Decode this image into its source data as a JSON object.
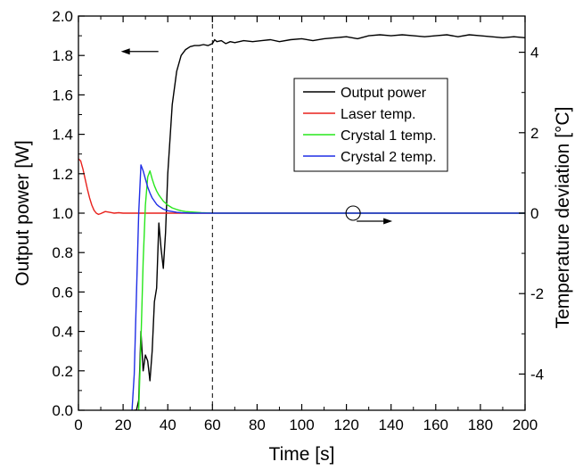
{
  "chart_data": {
    "type": "line",
    "title": "",
    "xlabel": "Time [s]",
    "ylabel_left": "Output power [W]",
    "ylabel_right": "Temperature deviation [°C]",
    "xlim": [
      0,
      200
    ],
    "ylim_left": [
      0,
      2.0
    ],
    "ylim_right": [
      -4.9,
      4.9
    ],
    "x_ticks": [
      0,
      20,
      40,
      60,
      80,
      100,
      120,
      140,
      160,
      180,
      200
    ],
    "x_tick_labels": [
      "0",
      "20",
      "40",
      "60",
      "80",
      "100",
      "120",
      "140",
      "160",
      "180",
      "200"
    ],
    "y_ticks_left": [
      0.0,
      0.2,
      0.4,
      0.6,
      0.8,
      1.0,
      1.2,
      1.4,
      1.6,
      1.8,
      2.0
    ],
    "y_tick_labels_left": [
      "0.0",
      "0.2",
      "0.4",
      "0.6",
      "0.8",
      "1.0",
      "1.2",
      "1.4",
      "1.6",
      "1.8",
      "2.0"
    ],
    "y_ticks_right": [
      -4,
      -2,
      0,
      2,
      4
    ],
    "y_tick_labels_right": [
      "-4",
      "-2",
      "0",
      "2",
      "4"
    ],
    "grid": false,
    "legend_position": "upper-right-center",
    "vertical_reference_line": {
      "x": 60,
      "style": "dashed"
    },
    "annotations": [
      {
        "type": "arrow",
        "direction": "left",
        "meaning": "Output power uses left axis",
        "x": 35,
        "y_left": 1.82
      },
      {
        "type": "circle-arrow",
        "direction": "right",
        "meaning": "Temperature curves use right axis",
        "x": 123,
        "y_left": 1.0
      }
    ],
    "series": [
      {
        "name": "Output power",
        "axis": "left",
        "color": "#000000",
        "x": [
          25,
          26,
          27,
          28,
          29,
          30,
          31,
          32,
          33,
          34,
          35,
          36,
          37,
          38,
          39,
          40,
          42,
          44,
          46,
          48,
          50,
          52,
          54,
          56,
          58,
          60,
          61,
          62,
          64,
          66,
          68,
          70,
          74,
          78,
          82,
          86,
          90,
          95,
          100,
          105,
          110,
          115,
          120,
          125,
          130,
          135,
          140,
          145,
          150,
          155,
          160,
          165,
          170,
          175,
          180,
          185,
          190,
          195,
          200
        ],
        "y": [
          0.0,
          0.0,
          0.05,
          0.4,
          0.2,
          0.28,
          0.25,
          0.15,
          0.3,
          0.55,
          0.62,
          0.95,
          0.82,
          0.72,
          0.9,
          1.2,
          1.55,
          1.72,
          1.8,
          1.83,
          1.845,
          1.85,
          1.85,
          1.855,
          1.85,
          1.86,
          1.88,
          1.87,
          1.875,
          1.86,
          1.87,
          1.865,
          1.875,
          1.87,
          1.875,
          1.88,
          1.87,
          1.88,
          1.885,
          1.875,
          1.885,
          1.89,
          1.895,
          1.885,
          1.9,
          1.905,
          1.9,
          1.905,
          1.9,
          1.895,
          1.9,
          1.905,
          1.895,
          1.905,
          1.9,
          1.895,
          1.89,
          1.895,
          1.89
        ]
      },
      {
        "name": "Laser temp.",
        "axis": "right",
        "color": "#e8211c",
        "x": [
          0,
          1,
          2,
          3,
          4,
          5,
          6,
          7,
          8,
          9,
          10,
          12,
          14,
          16,
          18,
          20,
          25,
          30,
          40,
          60,
          100,
          150,
          200
        ],
        "y": [
          1.35,
          1.3,
          1.1,
          0.85,
          0.6,
          0.38,
          0.2,
          0.07,
          0.0,
          -0.03,
          -0.01,
          0.04,
          0.02,
          0.0,
          0.01,
          0.0,
          0.0,
          0.0,
          0.0,
          0.0,
          0.0,
          0.0,
          0.0
        ]
      },
      {
        "name": "Crystal 1 temp.",
        "axis": "right",
        "color": "#27e71b",
        "x": [
          27,
          28,
          29,
          30,
          31,
          32,
          33,
          34,
          35,
          36,
          38,
          40,
          42,
          44,
          46,
          48,
          50,
          55,
          60,
          80,
          100,
          150,
          200
        ],
        "y": [
          -4.9,
          -3.2,
          -1.2,
          0.2,
          0.9,
          1.05,
          0.85,
          0.68,
          0.55,
          0.45,
          0.3,
          0.2,
          0.13,
          0.09,
          0.06,
          0.04,
          0.03,
          0.01,
          0.0,
          0.0,
          0.0,
          0.0,
          0.0
        ]
      },
      {
        "name": "Crystal 2 temp.",
        "axis": "right",
        "color": "#1f2ee6",
        "x": [
          24,
          25,
          26,
          27,
          28,
          29,
          30,
          31,
          32,
          33,
          34,
          35,
          36,
          38,
          40,
          42,
          44,
          46,
          50,
          55,
          60,
          80,
          100,
          150,
          200
        ],
        "y": [
          -4.9,
          -4.0,
          -2.0,
          0.0,
          1.2,
          1.05,
          0.85,
          0.65,
          0.5,
          0.38,
          0.3,
          0.22,
          0.17,
          0.1,
          0.06,
          0.04,
          0.02,
          0.01,
          0.0,
          0.0,
          0.0,
          0.0,
          0.0,
          0.0,
          0.0
        ]
      }
    ]
  }
}
